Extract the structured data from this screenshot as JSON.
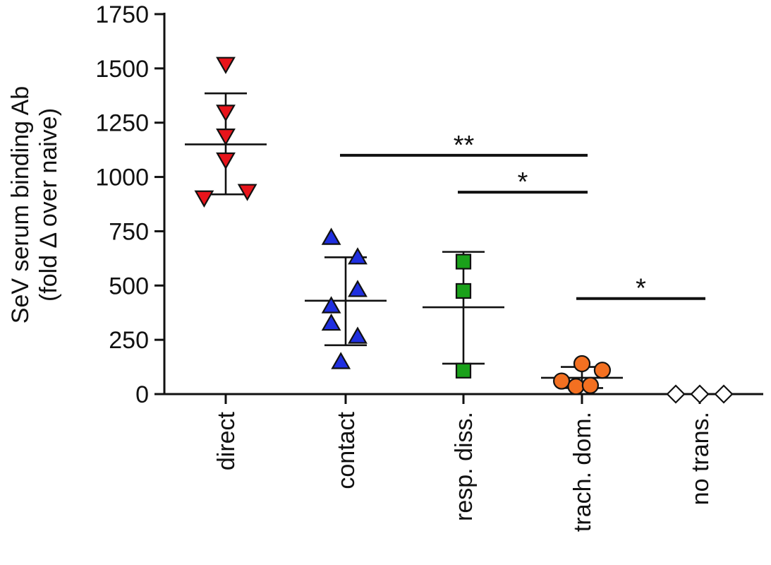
{
  "chart_data": {
    "type": "scatter",
    "ylabel_line1": "SeV serum binding Ab",
    "ylabel_line2": "(fold Δ over naive)",
    "ylim": [
      0,
      1750
    ],
    "yticks": [
      0,
      250,
      500,
      750,
      1000,
      1250,
      1500,
      1750
    ],
    "ytick_labels": [
      "0",
      "250",
      "500",
      "750",
      "1000",
      "1250",
      "1500",
      "1750"
    ],
    "grid": false,
    "categories": [
      "direct",
      "contact",
      "resp. diss.",
      "trach. dom.",
      "no trans."
    ],
    "groups": [
      {
        "category": "direct",
        "marker": "triangle-down",
        "color": "#e8141b",
        "points": [
          {
            "offset": 0.0,
            "y": 1520
          },
          {
            "offset": 0.0,
            "y": 1300
          },
          {
            "offset": 0.0,
            "y": 1190
          },
          {
            "offset": 0.0,
            "y": 1080
          },
          {
            "offset": -0.18,
            "y": 905
          },
          {
            "offset": 0.18,
            "y": 935
          }
        ],
        "mean": 1150,
        "sd_upper": 1385,
        "sd_lower": 920
      },
      {
        "category": "contact",
        "marker": "triangle-up",
        "color": "#1f2fe0",
        "points": [
          {
            "offset": -0.12,
            "y": 720
          },
          {
            "offset": 0.1,
            "y": 630
          },
          {
            "offset": 0.1,
            "y": 480
          },
          {
            "offset": -0.12,
            "y": 405
          },
          {
            "offset": -0.12,
            "y": 325
          },
          {
            "offset": 0.1,
            "y": 265
          },
          {
            "offset": -0.04,
            "y": 148
          }
        ],
        "mean": 430,
        "sd_upper": 630,
        "sd_lower": 225
      },
      {
        "category": "resp. diss.",
        "marker": "square",
        "color": "#1aa11a",
        "points": [
          {
            "offset": 0.0,
            "y": 610
          },
          {
            "offset": 0.0,
            "y": 475
          },
          {
            "offset": 0.0,
            "y": 108
          }
        ],
        "mean": 400,
        "sd_upper": 655,
        "sd_lower": 140
      },
      {
        "category": "trach. dom.",
        "marker": "circle",
        "color": "#f37021",
        "points": [
          {
            "offset": -0.17,
            "y": 60
          },
          {
            "offset": -0.05,
            "y": 35
          },
          {
            "offset": 0.0,
            "y": 140
          },
          {
            "offset": 0.07,
            "y": 40
          },
          {
            "offset": 0.17,
            "y": 110
          }
        ],
        "mean": 75,
        "sd_upper": 125,
        "sd_lower": 28
      },
      {
        "category": "no trans.",
        "marker": "diamond",
        "color": "#ffffff",
        "points": [
          {
            "offset": -0.2,
            "y": 0
          },
          {
            "offset": 0.0,
            "y": 0
          },
          {
            "offset": 0.2,
            "y": 0
          }
        ]
      }
    ],
    "significance": [
      {
        "from": "contact",
        "to": "trach. dom.",
        "y": 1100,
        "label": "**"
      },
      {
        "from": "resp. diss.",
        "to": "trach. dom.",
        "y": 930,
        "label": "*"
      },
      {
        "from": "trach. dom.",
        "to": "no trans.",
        "y": 440,
        "label": "*"
      }
    ]
  }
}
